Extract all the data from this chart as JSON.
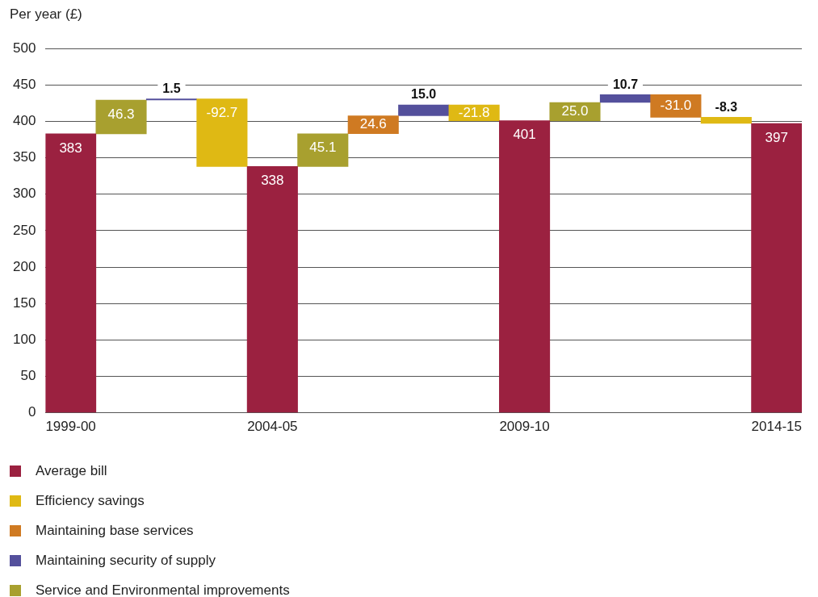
{
  "chart_data": {
    "type": "bar",
    "ylabel": "Per year (£)",
    "categories": [
      "1999-00",
      null,
      null,
      null,
      "2004-05",
      null,
      null,
      null,
      null,
      "2009-10",
      null,
      null,
      null,
      null,
      "2014-15"
    ],
    "series": [
      {
        "name": "Average bill",
        "color": "#9b2140",
        "values": [
          383,
          null,
          null,
          null,
          338,
          null,
          null,
          null,
          null,
          401,
          null,
          null,
          null,
          null,
          397
        ],
        "value_labels": [
          "383",
          null,
          null,
          null,
          "338",
          null,
          null,
          null,
          null,
          "401",
          null,
          null,
          null,
          null,
          "397"
        ]
      },
      {
        "name": "Efficiency savings",
        "color": "#dfb914",
        "values": [
          null,
          null,
          null,
          -92.7,
          null,
          null,
          null,
          null,
          -21.8,
          null,
          null,
          null,
          null,
          -8.3,
          null
        ],
        "base": [
          null,
          null,
          null,
          430.8,
          null,
          null,
          null,
          null,
          422.7,
          null,
          null,
          null,
          null,
          405.7,
          null
        ],
        "value_labels": [
          null,
          null,
          null,
          "-92.7",
          null,
          null,
          null,
          null,
          "-21.8",
          null,
          null,
          null,
          null,
          "-8.3",
          null
        ]
      },
      {
        "name": "Maintaining base services",
        "color": "#cf7a22",
        "values": [
          null,
          null,
          null,
          null,
          null,
          null,
          24.6,
          null,
          null,
          null,
          null,
          null,
          -31.0,
          null,
          null
        ],
        "base": [
          null,
          null,
          null,
          null,
          null,
          null,
          383.1,
          null,
          null,
          null,
          null,
          null,
          436.7,
          null,
          null
        ],
        "value_labels": [
          null,
          null,
          null,
          null,
          null,
          null,
          "24.6",
          null,
          null,
          null,
          null,
          null,
          "-31.0",
          null,
          null
        ]
      },
      {
        "name": "Maintaining security of supply",
        "color": "#54509c",
        "values": [
          null,
          null,
          1.5,
          null,
          null,
          null,
          null,
          15.0,
          null,
          null,
          null,
          10.7,
          null,
          null,
          null
        ],
        "base": [
          null,
          null,
          429.3,
          null,
          null,
          null,
          null,
          407.7,
          null,
          null,
          null,
          426.0,
          null,
          null,
          null
        ],
        "value_labels": [
          null,
          null,
          "1.5",
          null,
          null,
          null,
          null,
          "15.0",
          null,
          null,
          null,
          "10.7",
          null,
          null,
          null
        ]
      },
      {
        "name": "Service and Environmental improvements",
        "color": "#a8a02f",
        "values": [
          null,
          46.3,
          null,
          null,
          null,
          45.1,
          null,
          null,
          null,
          null,
          25.0,
          null,
          null,
          null,
          null
        ],
        "base": [
          null,
          383,
          null,
          null,
          null,
          338,
          null,
          null,
          null,
          null,
          401,
          null,
          null,
          null,
          null
        ],
        "value_labels": [
          null,
          "46.3",
          null,
          null,
          null,
          "45.1",
          null,
          null,
          null,
          null,
          "25.0",
          null,
          null,
          null,
          null
        ]
      }
    ],
    "ylim": [
      0,
      500
    ],
    "yticks": [
      0,
      50,
      100,
      150,
      200,
      250,
      300,
      350,
      400,
      450,
      500
    ],
    "grid": "y",
    "legend": "bottom"
  }
}
